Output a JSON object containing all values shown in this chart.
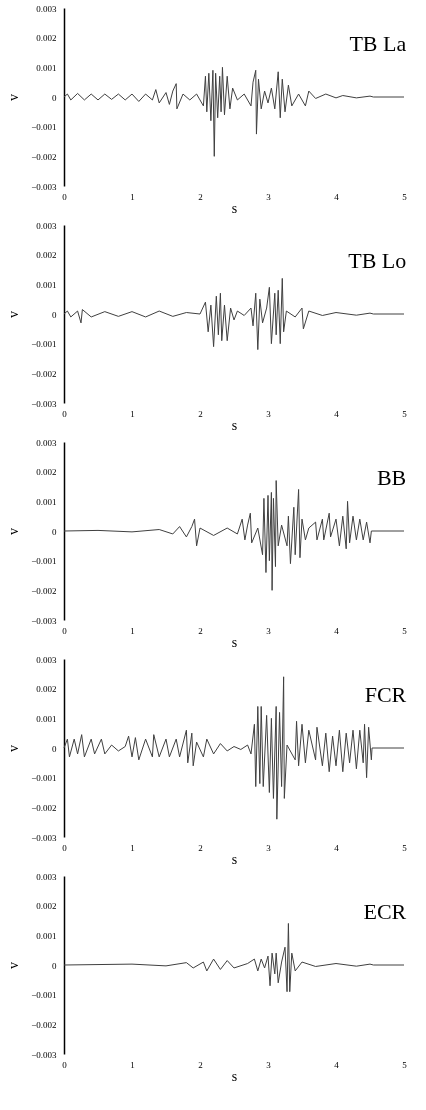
{
  "chart_data": [
    {
      "type": "line",
      "title": "TB La",
      "xlabel": "s",
      "ylabel": "v",
      "xlim": [
        0,
        5
      ],
      "ylim": [
        -0.003,
        0.003
      ],
      "xticks": [
        0,
        1,
        2,
        3,
        4,
        5
      ],
      "yticks": [
        -0.003,
        -0.002,
        -0.001,
        0,
        0.001,
        0.002,
        0.003
      ],
      "x": [
        0,
        0.05,
        0.1,
        0.2,
        0.3,
        0.4,
        0.5,
        0.6,
        0.7,
        0.8,
        0.9,
        1.0,
        1.1,
        1.2,
        1.3,
        1.35,
        1.4,
        1.5,
        1.55,
        1.6,
        1.65,
        1.66,
        1.75,
        1.85,
        1.95,
        2.05,
        2.08,
        2.1,
        2.13,
        2.16,
        2.19,
        2.21,
        2.23,
        2.26,
        2.29,
        2.31,
        2.33,
        2.36,
        2.4,
        2.44,
        2.48,
        2.55,
        2.65,
        2.75,
        2.78,
        2.82,
        2.83,
        2.86,
        2.9,
        2.95,
        3.0,
        3.05,
        3.1,
        3.15,
        3.18,
        3.21,
        3.25,
        3.3,
        3.35,
        3.45,
        3.55,
        3.6,
        3.7,
        3.85,
        4.0,
        4.1,
        4.3,
        4.5,
        4.55,
        5
      ],
      "series": [
        {
          "color": "#404040",
          "values": [
            0,
            0.0001,
            -0.0001,
            0.00012,
            -0.0001,
            0.0001,
            -0.0001,
            0.0001,
            -8e-05,
            0.0001,
            -0.0001,
            0.0001,
            -0.00015,
            0.0001,
            -0.0001,
            0.00025,
            -0.0002,
            0.00015,
            -0.00025,
            0.0002,
            0.00045,
            -0.0004,
            0.0001,
            -0.0001,
            0.0001,
            -0.0003,
            0.0007,
            -0.0005,
            0.0008,
            -0.0008,
            0.0009,
            -0.002,
            0.0008,
            -0.0007,
            0.0007,
            -0.0005,
            0.001,
            -0.0006,
            0.0007,
            -0.0004,
            0.0003,
            -0.0001,
            0.0001,
            -0.0003,
            0.0005,
            0.0009,
            -0.00125,
            0.0006,
            -0.0004,
            0.0002,
            -0.0002,
            0.0003,
            -0.0004,
            0.00085,
            -0.0007,
            0.0006,
            -0.0005,
            0.0004,
            -0.0003,
            0.0001,
            -0.0003,
            0.0002,
            -5e-05,
            0.0001,
            -3e-05,
            5e-05,
            -3e-05,
            3e-05,
            0,
            0
          ]
        }
      ]
    },
    {
      "type": "line",
      "title": "TB Lo",
      "xlabel": "s",
      "ylabel": "v",
      "xlim": [
        0,
        5
      ],
      "ylim": [
        -0.003,
        0.003
      ],
      "xticks": [
        0,
        1,
        2,
        3,
        4,
        5
      ],
      "yticks": [
        -0.003,
        -0.002,
        -0.001,
        0,
        0.001,
        0.002,
        0.003
      ],
      "x": [
        0,
        0.05,
        0.1,
        0.2,
        0.25,
        0.27,
        0.4,
        0.6,
        0.8,
        1.0,
        1.2,
        1.4,
        1.6,
        1.8,
        2.0,
        2.08,
        2.12,
        2.16,
        2.2,
        2.24,
        2.27,
        2.3,
        2.32,
        2.36,
        2.4,
        2.45,
        2.5,
        2.55,
        2.65,
        2.75,
        2.78,
        2.82,
        2.85,
        2.88,
        2.92,
        2.98,
        3.02,
        3.05,
        3.1,
        3.12,
        3.15,
        3.18,
        3.21,
        3.23,
        3.27,
        3.4,
        3.5,
        3.52,
        3.6,
        3.8,
        4.0,
        4.3,
        4.5,
        4.55,
        5
      ],
      "series": [
        {
          "color": "#404040",
          "values": [
            0,
            0.0001,
            -0.0001,
            0.0001,
            -0.0003,
            0.00015,
            -0.0001,
            8e-05,
            -8e-05,
            8e-05,
            -0.0001,
            0.0001,
            -8e-05,
            5e-05,
            0,
            0.0004,
            -0.0006,
            0.0003,
            -0.0011,
            0.0006,
            -0.0007,
            0.0007,
            -0.0009,
            0.0003,
            -0.0009,
            0.0002,
            -0.0002,
            0.0001,
            -5e-05,
            0.0002,
            -0.0004,
            0.0007,
            -0.0012,
            0.0005,
            -0.0003,
            0.0002,
            0.0009,
            -0.001,
            0.0007,
            -0.0007,
            0.0008,
            -0.001,
            0.0012,
            -0.0006,
            0.0001,
            -0.0001,
            0.0002,
            -0.0005,
            0.0001,
            -5e-05,
            5e-05,
            -4e-05,
            3e-05,
            0,
            0
          ]
        }
      ]
    },
    {
      "type": "line",
      "title": "BB",
      "xlabel": "s",
      "ylabel": "v",
      "xlim": [
        0,
        5
      ],
      "ylim": [
        -0.003,
        0.003
      ],
      "xticks": [
        0,
        1,
        2,
        3,
        4,
        5
      ],
      "yticks": [
        -0.003,
        -0.002,
        -0.001,
        0,
        0.001,
        0.002,
        0.003
      ],
      "x": [
        0,
        0.5,
        1.0,
        1.4,
        1.6,
        1.7,
        1.8,
        1.88,
        1.92,
        1.95,
        2.0,
        2.2,
        2.4,
        2.55,
        2.62,
        2.66,
        2.7,
        2.74,
        2.76,
        2.85,
        2.92,
        2.94,
        2.97,
        3.0,
        3.02,
        3.05,
        3.06,
        3.08,
        3.11,
        3.12,
        3.15,
        3.2,
        3.28,
        3.3,
        3.33,
        3.38,
        3.4,
        3.45,
        3.47,
        3.5,
        3.55,
        3.6,
        3.7,
        3.72,
        3.8,
        3.82,
        3.9,
        3.92,
        4.0,
        4.05,
        4.1,
        4.15,
        4.17,
        4.2,
        4.25,
        4.3,
        4.35,
        4.4,
        4.45,
        4.5,
        4.52,
        5
      ],
      "series": [
        {
          "color": "#404040",
          "values": [
            0,
            2e-05,
            -3e-05,
            5e-05,
            -0.0001,
            0.00015,
            -0.0002,
            0.00015,
            0.0004,
            -0.0005,
            0.0001,
            -0.00015,
            0.0001,
            -0.0001,
            0.0004,
            -0.0003,
            0.0002,
            0.0006,
            -0.0004,
            0.0001,
            -0.0008,
            0.0011,
            -0.0014,
            0.0012,
            -0.001,
            0.0013,
            -0.002,
            0.0011,
            -0.0012,
            0.0017,
            -0.0005,
            0.0002,
            -0.0005,
            0.0005,
            -0.0011,
            0.0008,
            -0.0008,
            0.0014,
            -0.0009,
            0.0004,
            -0.0003,
            0.0001,
            0.0003,
            -0.0003,
            0.0004,
            -0.0003,
            0.0006,
            -0.0002,
            0.0004,
            -0.0005,
            0.0005,
            -0.0006,
            0.001,
            -0.0004,
            0.0005,
            -0.0003,
            0.0004,
            -0.0003,
            0.0003,
            -0.0004,
            0,
            0
          ]
        }
      ]
    },
    {
      "type": "line",
      "title": "FCR",
      "xlabel": "s",
      "ylabel": "v",
      "xlim": [
        0,
        5
      ],
      "ylim": [
        -0.003,
        0.003
      ],
      "xticks": [
        0,
        1,
        2,
        3,
        4,
        5
      ],
      "yticks": [
        -0.003,
        -0.002,
        -0.001,
        0,
        0.001,
        0.002,
        0.003
      ],
      "x": [
        0,
        0.05,
        0.08,
        0.15,
        0.2,
        0.26,
        0.3,
        0.4,
        0.45,
        0.55,
        0.6,
        0.7,
        0.8,
        0.9,
        0.95,
        1.0,
        1.05,
        1.1,
        1.2,
        1.3,
        1.32,
        1.4,
        1.5,
        1.55,
        1.65,
        1.7,
        1.8,
        1.82,
        1.88,
        1.9,
        1.95,
        2.05,
        2.1,
        2.2,
        2.3,
        2.4,
        2.5,
        2.6,
        2.7,
        2.75,
        2.8,
        2.82,
        2.85,
        2.88,
        2.9,
        2.93,
        2.98,
        3.02,
        3.05,
        3.08,
        3.12,
        3.13,
        3.17,
        3.2,
        3.23,
        3.24,
        3.28,
        3.4,
        3.42,
        3.45,
        3.5,
        3.55,
        3.6,
        3.7,
        3.72,
        3.8,
        3.85,
        3.9,
        3.95,
        4.0,
        4.05,
        4.1,
        4.15,
        4.2,
        4.25,
        4.3,
        4.35,
        4.4,
        4.42,
        4.45,
        4.48,
        4.52,
        4.53,
        5
      ],
      "series": [
        {
          "color": "#404040",
          "values": [
            0,
            0.0003,
            -0.0003,
            0.0003,
            -0.0002,
            0.00045,
            -0.0003,
            0.0003,
            -0.0002,
            0.0003,
            -0.0002,
            0.0001,
            -0.0001,
            5e-05,
            0.0004,
            -0.0003,
            0.00035,
            -0.0004,
            0.0003,
            -0.0003,
            0.00045,
            -0.0003,
            0.0003,
            -0.0003,
            0.0003,
            -0.0003,
            0.0006,
            -0.0005,
            0.0005,
            -0.0006,
            0.0002,
            -0.0003,
            0.0003,
            -0.0002,
            0.00015,
            -0.0001,
            5e-05,
            -5e-05,
            0.0001,
            -0.0002,
            0.0008,
            -0.0013,
            0.0014,
            -0.0012,
            0.0014,
            -0.0013,
            0.0011,
            -0.0015,
            0.001,
            -0.0017,
            0.0014,
            -0.0024,
            0.0012,
            -0.0013,
            0.0024,
            -0.0017,
            0.0001,
            -0.0004,
            0.0009,
            -0.0006,
            0.0008,
            -0.0005,
            0.0006,
            -0.0004,
            0.0007,
            -0.0006,
            0.0005,
            -0.0008,
            0.0004,
            -0.0006,
            0.0006,
            -0.0008,
            0.0005,
            -0.0005,
            0.0006,
            -0.0007,
            0.0006,
            -0.0005,
            0.0008,
            -0.001,
            0.0007,
            -0.0004,
            0,
            0
          ]
        }
      ]
    },
    {
      "type": "line",
      "title": "ECR",
      "xlabel": "s",
      "ylabel": "v",
      "xlim": [
        0,
        5
      ],
      "ylim": [
        -0.003,
        0.003
      ],
      "xticks": [
        0,
        1,
        2,
        3,
        4,
        5
      ],
      "yticks": [
        -0.003,
        -0.002,
        -0.001,
        0,
        0.001,
        0.002,
        0.003
      ],
      "x": [
        0,
        1.0,
        1.5,
        1.8,
        1.9,
        2.05,
        2.1,
        2.2,
        2.3,
        2.4,
        2.5,
        2.7,
        2.8,
        2.85,
        2.9,
        2.95,
        3.0,
        3.03,
        3.06,
        3.1,
        3.12,
        3.15,
        3.2,
        3.25,
        3.28,
        3.3,
        3.32,
        3.35,
        3.4,
        3.5,
        3.7,
        4.0,
        4.3,
        4.5,
        4.55,
        5
      ],
      "series": [
        {
          "color": "#404040",
          "values": [
            0,
            3e-05,
            -3e-05,
            8e-05,
            -0.0001,
            0.0001,
            -0.0002,
            0.0002,
            -0.00015,
            0.00015,
            -0.0001,
            5e-05,
            0.0002,
            -0.0002,
            0.0002,
            -0.0001,
            0.0003,
            -0.0007,
            0.0004,
            -0.0003,
            0.0004,
            -0.0006,
            0.0001,
            0.0006,
            -0.0009,
            0.0014,
            -0.0009,
            0.0004,
            -0.0002,
            0.0001,
            -5e-05,
            5e-05,
            -4e-05,
            3e-05,
            0,
            0
          ]
        }
      ]
    }
  ]
}
